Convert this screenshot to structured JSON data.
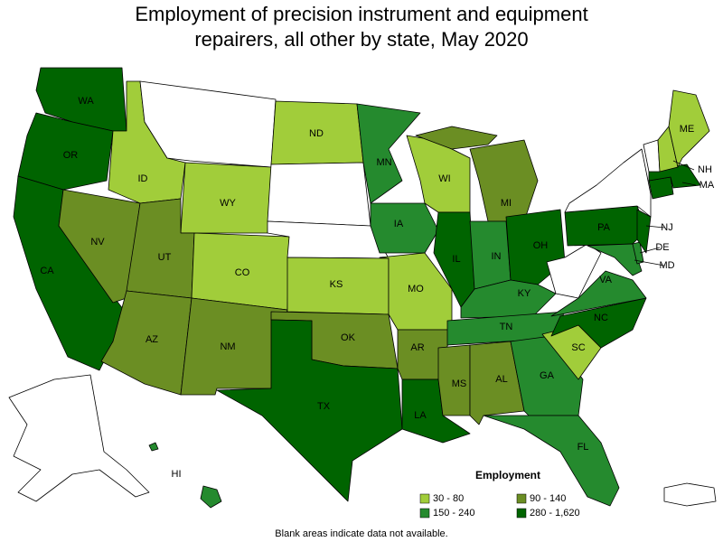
{
  "title": "Employment of precision instrument and equipment repairers, all other by state, May 2020",
  "legend": {
    "title": "Employment",
    "entries": [
      {
        "label": "30 - 80",
        "color": "#a1cd3a",
        "states": [
          "ID",
          "WY",
          "CO",
          "ND",
          "KS",
          "MO",
          "WI",
          "SC",
          "NH",
          "ME"
        ]
      },
      {
        "label": "90 - 140",
        "color": "#6b8e23",
        "states": [
          "NV",
          "UT",
          "AZ",
          "NM",
          "OK",
          "AR",
          "MI",
          "MS",
          "AL"
        ]
      },
      {
        "label": "150 - 240",
        "color": "#258a2e",
        "states": [
          "MN",
          "IA",
          "IN",
          "KY",
          "TN",
          "GA",
          "FL",
          "VA",
          "MD",
          "DE",
          "HI"
        ]
      },
      {
        "label": "280 - 1,620",
        "color": "#006400",
        "states": [
          "WA",
          "OR",
          "CA",
          "TX",
          "LA",
          "IL",
          "OH",
          "NC",
          "PA",
          "NJ",
          "MA"
        ]
      }
    ]
  },
  "footnote": "Blank areas indicate data not available."
}
